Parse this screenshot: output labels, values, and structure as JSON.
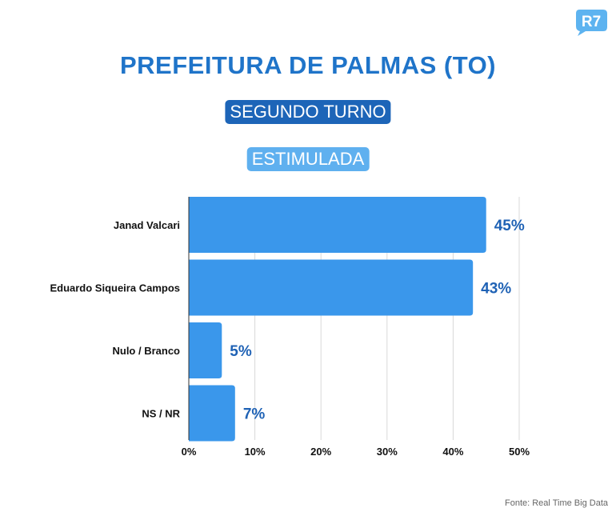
{
  "brand": {
    "logo_text": "R7",
    "color": "#5db3f0"
  },
  "header": {
    "title": "PREFEITURA DE PALMAS (TO)",
    "round": "SEGUNDO TURNO",
    "survey_type": "ESTIMULADA"
  },
  "footer": {
    "source": "Fonte: Real Time Big Data"
  },
  "colors": {
    "bar": "#3a97eb",
    "value_label": "#1f62b5",
    "grid": "#d9d9d9",
    "text": "#111111"
  },
  "chart_data": {
    "type": "bar",
    "orientation": "horizontal",
    "categories": [
      "Janad Valcari",
      "Eduardo Siqueira Campos",
      "Nulo / Branco",
      "NS / NR"
    ],
    "values": [
      45,
      43,
      5,
      7
    ],
    "value_labels": [
      "45%",
      "43%",
      "5%",
      "7%"
    ],
    "xlim": [
      0,
      50
    ],
    "xticks": [
      0,
      10,
      20,
      30,
      40,
      50
    ],
    "xtick_labels": [
      "0%",
      "10%",
      "20%",
      "30%",
      "40%",
      "50%"
    ],
    "grid": true,
    "legend": "none"
  }
}
